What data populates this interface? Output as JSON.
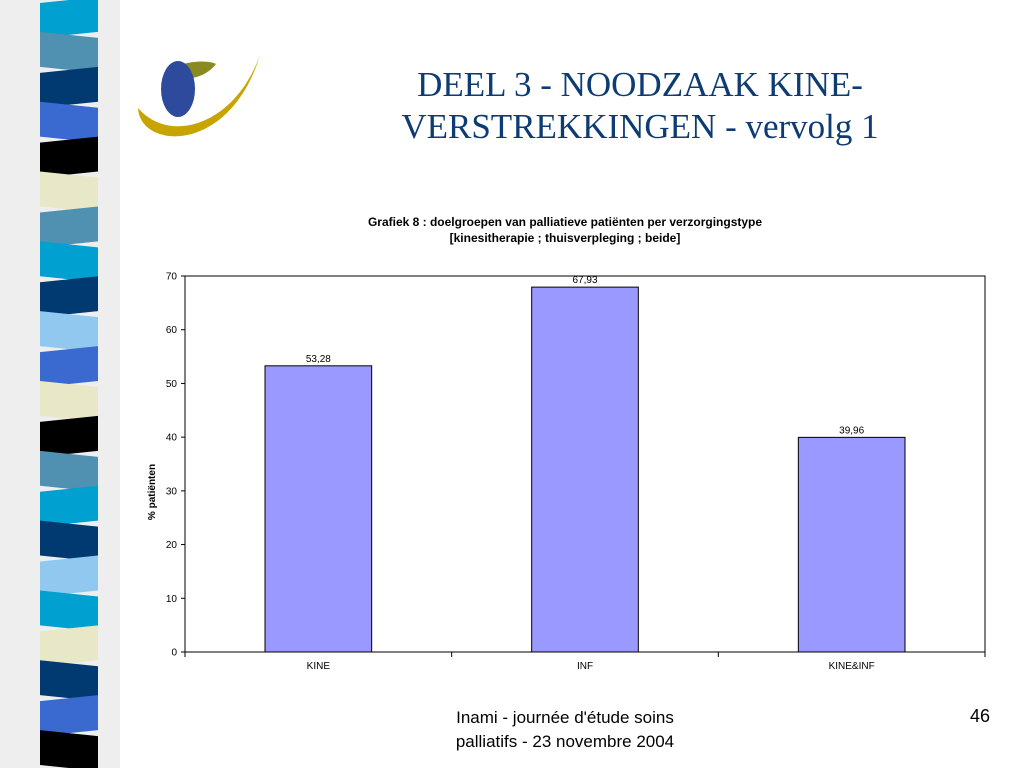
{
  "slide": {
    "title_line1": "DEEL 3  - NOODZAAK KINE-",
    "title_line2": "VERSTREKKINGEN - vervolg 1",
    "footer_line1": "Inami - journée d'étude soins",
    "footer_line2": "palliatifs - 23 novembre 2004",
    "page_number": "46",
    "title_color": "#0d3b73",
    "logo_colors": {
      "oval": "#2d4a9c",
      "swoosh": "#c8a400",
      "leaf": "#8a8a20"
    },
    "band_colors": [
      "#00a0d0",
      "#5090b0",
      "#003a70",
      "#3a6ad0",
      "#000000",
      "#e8e8c8",
      "#90c8f0"
    ]
  },
  "chart_data": {
    "type": "bar",
    "title_line1": "Grafiek 8 : doelgroepen van palliatieve patiënten per verzorgingstype",
    "title_line2": "[kinesitherapie ; thuisverpleging ; beide]",
    "categories": [
      "KINE",
      "INF",
      "KINE&INF"
    ],
    "values": [
      53.28,
      67.93,
      39.96
    ],
    "value_labels": [
      "53,28",
      "67,93",
      "39,96"
    ],
    "xlabel": "",
    "ylabel": "% patiënten",
    "ylim": [
      0,
      70
    ],
    "yticks": [
      0,
      10,
      20,
      30,
      40,
      50,
      60,
      70
    ],
    "grid": false,
    "legend": "none",
    "bar_color": "#9999ff"
  }
}
